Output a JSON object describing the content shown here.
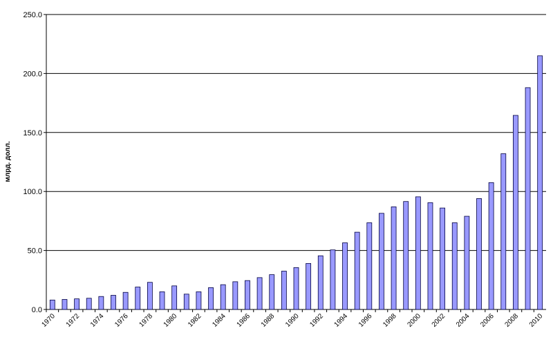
{
  "chart_data": {
    "type": "bar",
    "y_label": "млрд. долл.",
    "categories": [
      "1970",
      null,
      "1972",
      null,
      "1974",
      null,
      "1976",
      null,
      "1978",
      null,
      "1980",
      null,
      "1982",
      null,
      "1984",
      null,
      "1986",
      null,
      "1988",
      null,
      "1990",
      null,
      "1992",
      null,
      "1994",
      null,
      "1996",
      null,
      "1998",
      null,
      "2000",
      null,
      "2002",
      null,
      "2004",
      null,
      "2006",
      null,
      "2008",
      null,
      "2010"
    ],
    "values": [
      8,
      8.5,
      9,
      9.5,
      11,
      12,
      14.5,
      19,
      23,
      15,
      20,
      13,
      15,
      18.5,
      21,
      23.5,
      24.5,
      27,
      29.5,
      32.5,
      35.5,
      39,
      45.5,
      50.5,
      56.5,
      65.5,
      73.5,
      81.5,
      87,
      91.5,
      95.5,
      90.5,
      86,
      73.5,
      79,
      94,
      107.5,
      132,
      164.5,
      188,
      215
    ],
    "color": "#9999ff",
    "ylim": [
      0,
      250
    ],
    "yticks": [
      {
        "value": 0,
        "label": "0.0"
      },
      {
        "value": 50,
        "label": "50.0"
      },
      {
        "value": 100,
        "label": "100.0"
      },
      {
        "value": 150,
        "label": "150.0"
      },
      {
        "value": 200,
        "label": "200.0"
      },
      {
        "value": 250,
        "label": "250.0"
      }
    ],
    "grid": true
  }
}
